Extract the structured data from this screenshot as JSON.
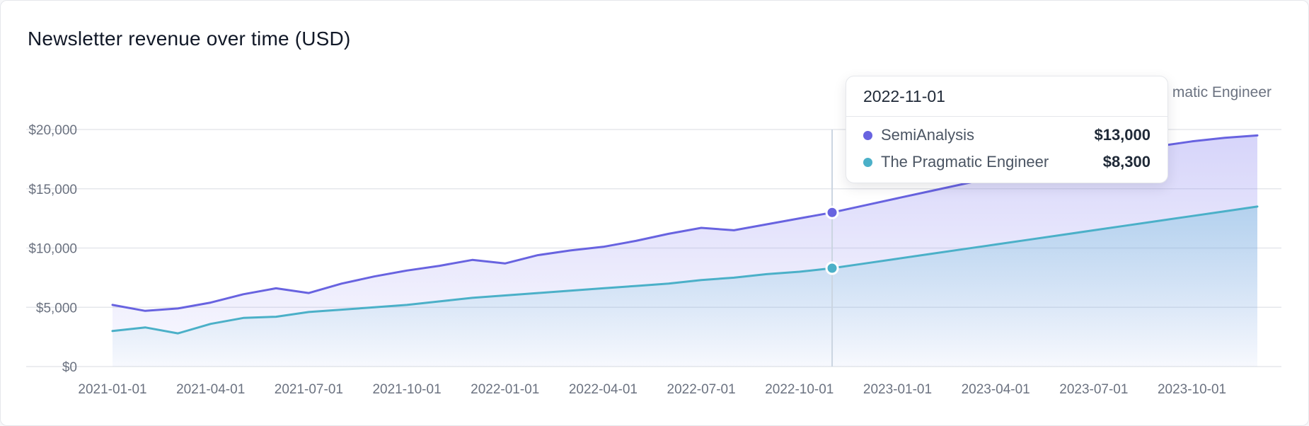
{
  "chart_data": {
    "type": "area",
    "title": "Newsletter revenue over time (USD)",
    "xlabel": "",
    "ylabel": "",
    "ylim": [
      0,
      20000
    ],
    "grid": true,
    "legend_position": "top-right",
    "y_ticks": [
      "$0",
      "$5,000",
      "$10,000",
      "$15,000",
      "$20,000"
    ],
    "y_tick_values": [
      0,
      5000,
      10000,
      15000,
      20000
    ],
    "x_ticks": [
      "2021-01-01",
      "2021-04-01",
      "2021-07-01",
      "2021-10-01",
      "2022-01-01",
      "2022-04-01",
      "2022-07-01",
      "2022-10-01",
      "2023-01-01",
      "2023-04-01",
      "2023-07-01",
      "2023-10-01"
    ],
    "x": [
      "2021-01-01",
      "2021-02-01",
      "2021-03-01",
      "2021-04-01",
      "2021-05-01",
      "2021-06-01",
      "2021-07-01",
      "2021-08-01",
      "2021-09-01",
      "2021-10-01",
      "2021-11-01",
      "2021-12-01",
      "2022-01-01",
      "2022-02-01",
      "2022-03-01",
      "2022-04-01",
      "2022-05-01",
      "2022-06-01",
      "2022-07-01",
      "2022-08-01",
      "2022-09-01",
      "2022-10-01",
      "2022-11-01",
      "2022-12-01",
      "2023-01-01",
      "2023-02-01",
      "2023-03-01",
      "2023-04-01",
      "2023-05-01",
      "2023-06-01",
      "2023-07-01",
      "2023-08-01",
      "2023-09-01",
      "2023-10-01",
      "2023-11-01",
      "2023-12-01"
    ],
    "series": [
      {
        "name": "SemiAnalysis",
        "color": "#6863e0",
        "values": [
          5200,
          4700,
          4900,
          5400,
          6100,
          6600,
          6200,
          7000,
          7600,
          8100,
          8500,
          9000,
          8700,
          9400,
          9800,
          10100,
          10600,
          11200,
          11700,
          11500,
          12000,
          12500,
          13000,
          13600,
          14200,
          14800,
          15400,
          16000,
          16600,
          17200,
          17700,
          18200,
          18600,
          19000,
          19300,
          19500
        ]
      },
      {
        "name": "The Pragmatic Engineer",
        "color": "#4bb0c8",
        "values": [
          3000,
          3300,
          2800,
          3600,
          4100,
          4200,
          4600,
          4800,
          5000,
          5200,
          5500,
          5800,
          6000,
          6200,
          6400,
          6600,
          6800,
          7000,
          7300,
          7500,
          7800,
          8000,
          8300,
          8700,
          9100,
          9500,
          9900,
          10300,
          10700,
          11100,
          11500,
          11900,
          12300,
          12700,
          13100,
          13500
        ]
      }
    ]
  },
  "legend": {
    "visible_text": "matic Engineer"
  },
  "tooltip": {
    "date": "2022-11-01",
    "hover_index": 22,
    "rows": [
      {
        "name": "SemiAnalysis",
        "value": "$13,000",
        "color": "#6863e0"
      },
      {
        "name": "The Pragmatic Engineer",
        "value": "$8,300",
        "color": "#4bb0c8"
      }
    ]
  }
}
